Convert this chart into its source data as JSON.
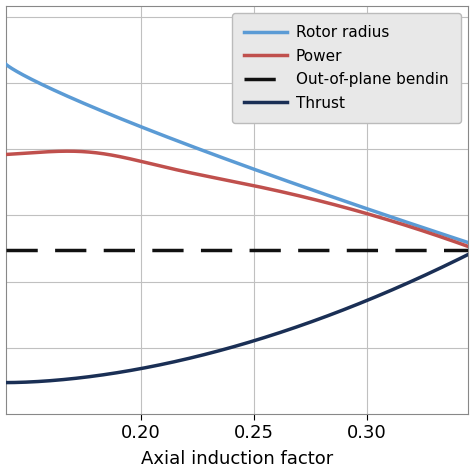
{
  "x_min": 0.14,
  "x_max": 0.345,
  "x_ticks": [
    0.2,
    0.25,
    0.3
  ],
  "xlabel": "Axial induction factor",
  "background_color": "#ffffff",
  "grid_color": "#c0c0c0",
  "legend_bg": "#e8e8e8",
  "rotor_radius_color": "#5b9bd5",
  "power_color": "#c0504d",
  "oopb_color": "#111111",
  "thrust_color": "#1a2f55",
  "rotor_radius_label": "Rotor radius",
  "power_label": "Power",
  "oopb_label": "Out-of-plane bendin",
  "thrust_label": "Thrust",
  "oopb_level": 0.42,
  "y_min": 0.0,
  "y_max": 1.05
}
